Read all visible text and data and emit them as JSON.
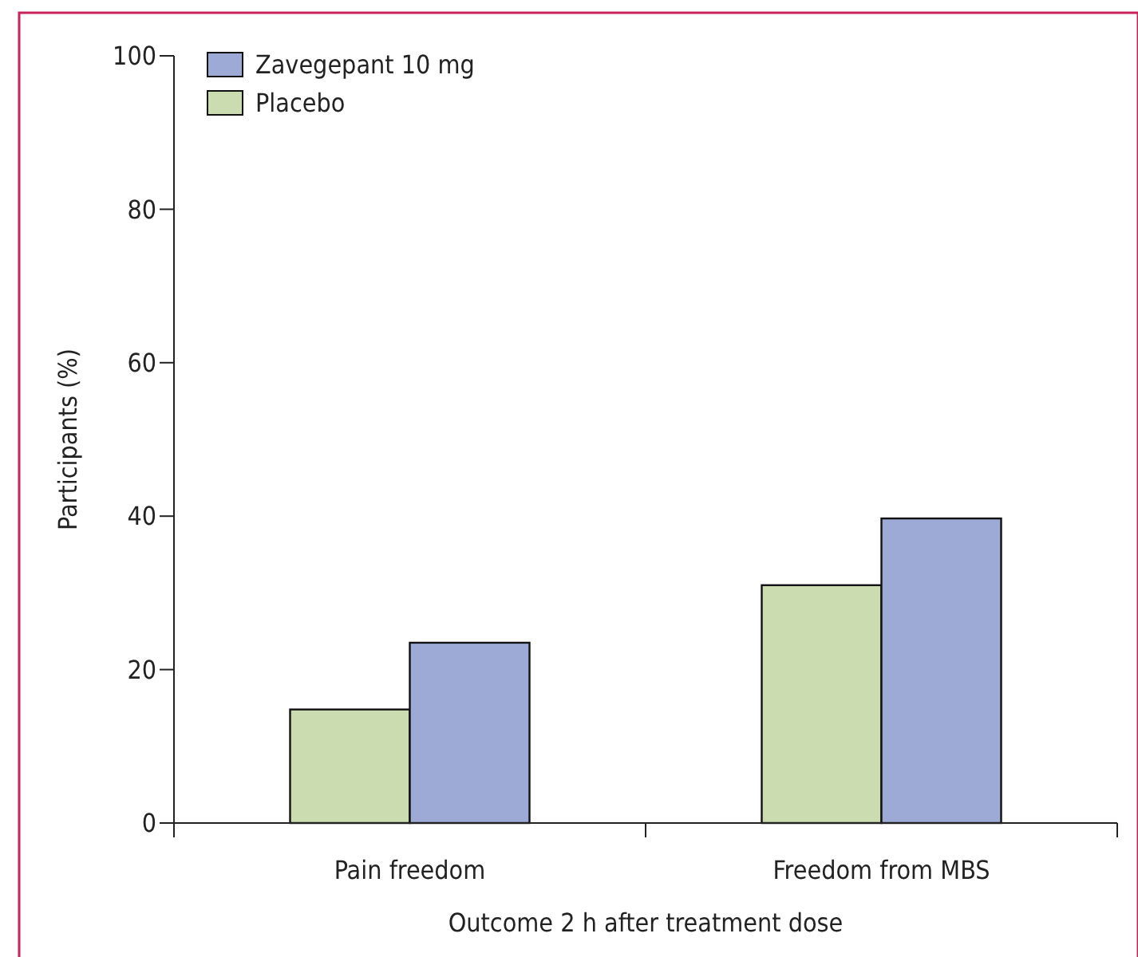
{
  "chart_data": {
    "type": "bar",
    "xlabel": "Outcome 2 h after treatment dose",
    "ylabel": "Participants (%)",
    "categories": [
      "Pain freedom",
      "Freedom from MBS"
    ],
    "series": [
      {
        "name": "Placebo",
        "color": "#cbddb0",
        "values": [
          14.8,
          31
        ]
      },
      {
        "name": "Zavegepant 10 mg",
        "color": "#9eaad6",
        "values": [
          23.5,
          39.7
        ]
      }
    ],
    "ylim": [
      0,
      100
    ],
    "yticks": [
      0,
      20,
      40,
      60,
      80,
      100
    ],
    "grid": false,
    "legend": "top left"
  }
}
